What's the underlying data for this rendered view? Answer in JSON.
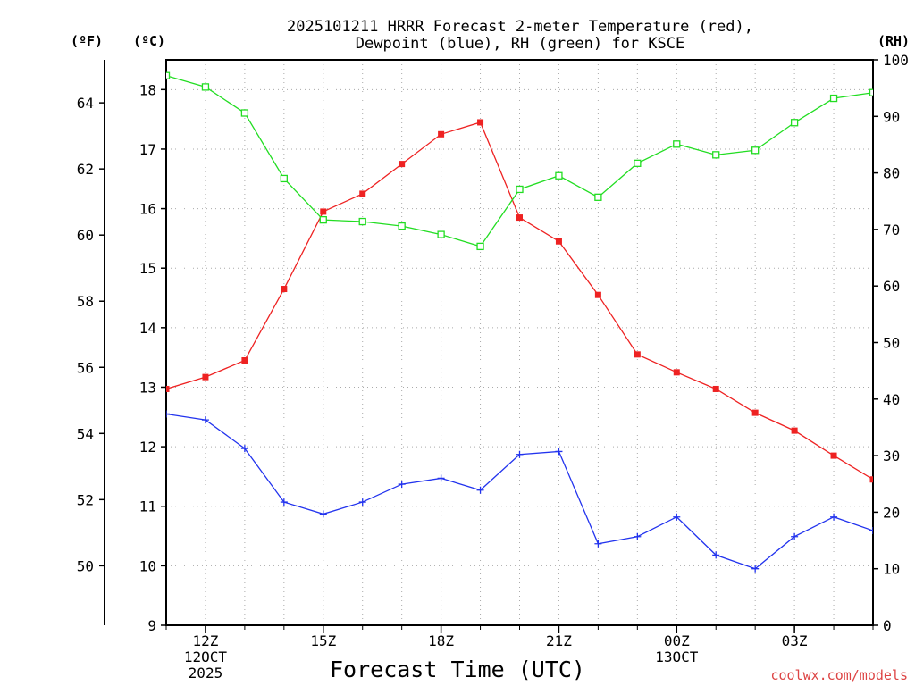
{
  "chart_data": {
    "type": "line",
    "title_lines": [
      "2025101211 HRRR Forecast 2-meter Temperature (red),",
      "Dewpoint (blue), RH (green) for KSCE"
    ],
    "xlabel": "Forecast Time (UTC)",
    "x_hours": [
      11,
      12,
      13,
      14,
      15,
      16,
      17,
      18,
      19,
      20,
      21,
      22,
      23,
      24,
      25,
      26,
      27,
      28,
      29
    ],
    "xlim": [
      11,
      29
    ],
    "x_ticks": [
      {
        "hour": 12,
        "labels": [
          "12Z",
          "12OCT",
          "2025"
        ]
      },
      {
        "hour": 15,
        "labels": [
          "15Z"
        ]
      },
      {
        "hour": 18,
        "labels": [
          "18Z"
        ]
      },
      {
        "hour": 21,
        "labels": [
          "21Z"
        ]
      },
      {
        "hour": 24,
        "labels": [
          "00Z",
          "13OCT"
        ]
      },
      {
        "hour": 27,
        "labels": [
          "03Z"
        ]
      }
    ],
    "left_axis_c": {
      "unit_label": "(ºC)",
      "ylim": [
        9,
        18.5
      ],
      "ticks": [
        "9",
        "10",
        "11",
        "12",
        "13",
        "14",
        "15",
        "16",
        "17",
        "18"
      ]
    },
    "left_axis_f": {
      "unit_label": "(ºF)",
      "ticks": [
        "50",
        "52",
        "54",
        "56",
        "58",
        "60",
        "62",
        "64"
      ]
    },
    "right_axis_rh": {
      "unit_label": "(RH)",
      "ylim": [
        0,
        100
      ],
      "ticks": [
        "0",
        "10",
        "20",
        "30",
        "40",
        "50",
        "60",
        "70",
        "80",
        "90",
        "100"
      ]
    },
    "series": [
      {
        "name": "2-meter Temperature",
        "axis": "C",
        "color": "#ee2222",
        "marker": "filled-square",
        "values": [
          12.97,
          13.17,
          13.45,
          14.65,
          15.95,
          16.25,
          16.75,
          17.25,
          17.45,
          15.85,
          15.45,
          14.55,
          13.55,
          13.25,
          12.97,
          12.57,
          12.27,
          11.85,
          11.45
        ]
      },
      {
        "name": "Dewpoint",
        "axis": "C",
        "color": "#2233ee",
        "marker": "plus",
        "values": [
          12.55,
          12.45,
          11.97,
          11.07,
          10.87,
          11.07,
          11.37,
          11.47,
          11.27,
          11.87,
          11.92,
          10.37,
          10.49,
          10.82,
          10.18,
          9.95,
          10.49,
          10.82,
          10.59
        ]
      },
      {
        "name": "RH",
        "axis": "RH",
        "color": "#22dd22",
        "marker": "open-square",
        "values": [
          97.2,
          95.2,
          90.6,
          79.0,
          71.7,
          71.4,
          70.6,
          69.1,
          67.0,
          77.1,
          79.5,
          75.7,
          81.7,
          85.1,
          83.2,
          84.0,
          88.9,
          93.2,
          94.2
        ]
      }
    ]
  },
  "footer": {
    "credit": "coolwx.com/models",
    "credit_color": "#dd4444"
  }
}
